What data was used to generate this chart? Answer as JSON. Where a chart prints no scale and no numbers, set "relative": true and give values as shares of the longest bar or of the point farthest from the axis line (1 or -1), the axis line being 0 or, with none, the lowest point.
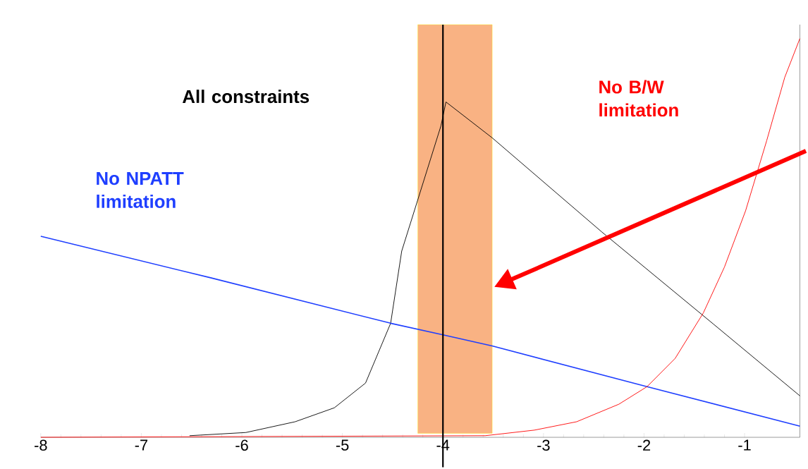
{
  "chart_data": {
    "type": "line",
    "relative": true,
    "xlim": [
      -8,
      -0.45
    ],
    "xticks": [
      -8,
      -7,
      -6,
      -5,
      -4,
      -3,
      -2,
      -1
    ],
    "series": [
      {
        "name": "All constraints",
        "color": "#000000",
        "x": [
          -6.52,
          -5.96,
          -5.47,
          -5.08,
          -4.77,
          -4.52,
          -4.41,
          -4.02,
          -3.97,
          -3.51,
          -2.42,
          -1.31,
          -0.45
        ],
        "values": [
          0.004,
          0.012,
          0.039,
          0.074,
          0.136,
          0.286,
          0.467,
          0.781,
          0.841,
          0.751,
          0.515,
          0.284,
          0.104
        ]
      },
      {
        "name": "No NPATT limitation",
        "color": "#1f3fff",
        "x": [
          -8,
          -6.31,
          -4.52,
          -4.0,
          -3.51,
          -1.97,
          -0.45
        ],
        "values": [
          0.504,
          0.4,
          0.286,
          0.257,
          0.229,
          0.127,
          0.028
        ]
      },
      {
        "name": "No B/W limitation",
        "color": "#ff0000",
        "x": [
          -8,
          -3.58,
          -3.09,
          -2.67,
          -2.25,
          -1.97,
          -1.69,
          -1.41,
          -1.2,
          -0.99,
          -0.78,
          -0.6,
          -0.45
        ],
        "values": [
          0,
          0.004,
          0.018,
          0.039,
          0.083,
          0.127,
          0.198,
          0.312,
          0.427,
          0.568,
          0.744,
          0.903,
          1.0
        ]
      }
    ],
    "ref_lines": [
      {
        "axis": "x",
        "value": -4,
        "color": "#000000"
      }
    ],
    "bands": [
      {
        "axis": "x",
        "from": -4.25,
        "to": -3.51,
        "color": "#f9b283"
      }
    ],
    "marker": "none"
  }
}
